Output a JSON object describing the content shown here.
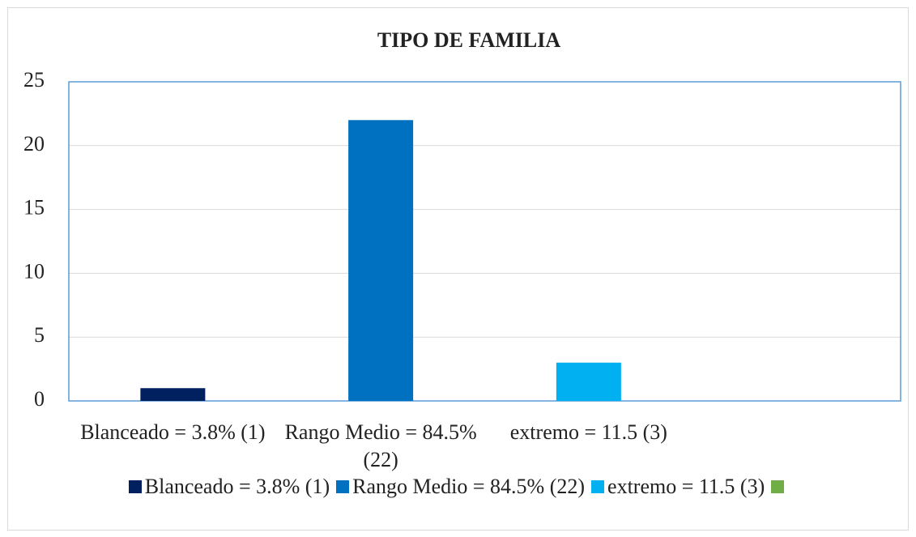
{
  "chart_data": {
    "type": "bar",
    "title": "TIPO DE FAMILIA",
    "categories": [
      "Blanceado = 3.8% (1)",
      "Rango Medio = 84.5% (22)",
      "extremo = 11.5 (3)",
      null
    ],
    "values": [
      1,
      22,
      3,
      null
    ],
    "colors": [
      "#002060",
      "#0070c0",
      "#00b0f0",
      "#70ad47"
    ],
    "ylim": [
      0,
      25
    ],
    "yticks": [
      0,
      5,
      10,
      15,
      20,
      25
    ],
    "grid": true,
    "legend": "bottom"
  }
}
